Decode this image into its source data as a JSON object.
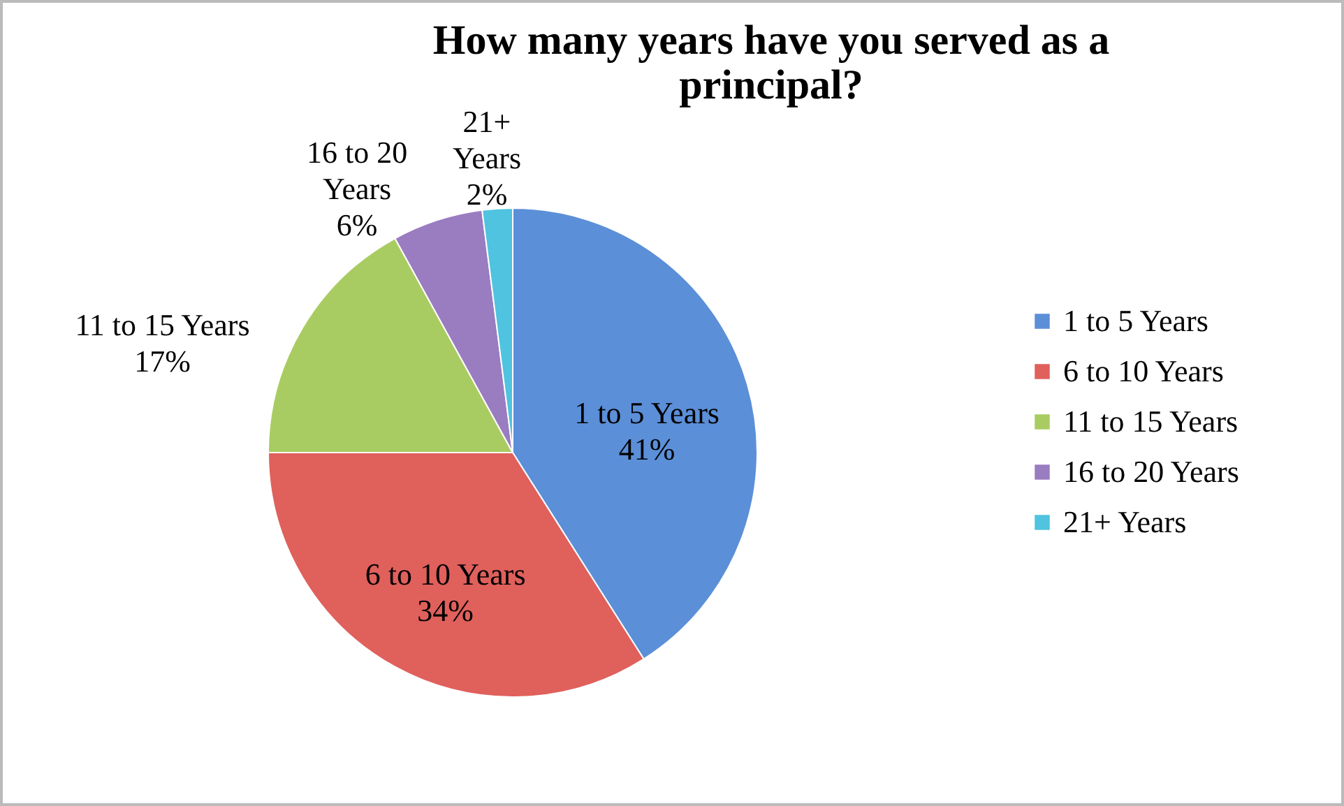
{
  "chart_data": {
    "type": "pie",
    "title": "How many years have you served as a principal?",
    "categories": [
      "1 to 5 Years",
      "6 to 10 Years",
      "11 to 15 Years",
      "16 to 20 Years",
      "21+ Years"
    ],
    "values": [
      41,
      34,
      17,
      6,
      2
    ],
    "value_labels": [
      "41%",
      "34%",
      "17%",
      "6%",
      "2%"
    ],
    "colors": [
      "#5b8fd8",
      "#e0605c",
      "#a9cc62",
      "#9a7cc0",
      "#4fc3df"
    ],
    "legend": "right"
  }
}
